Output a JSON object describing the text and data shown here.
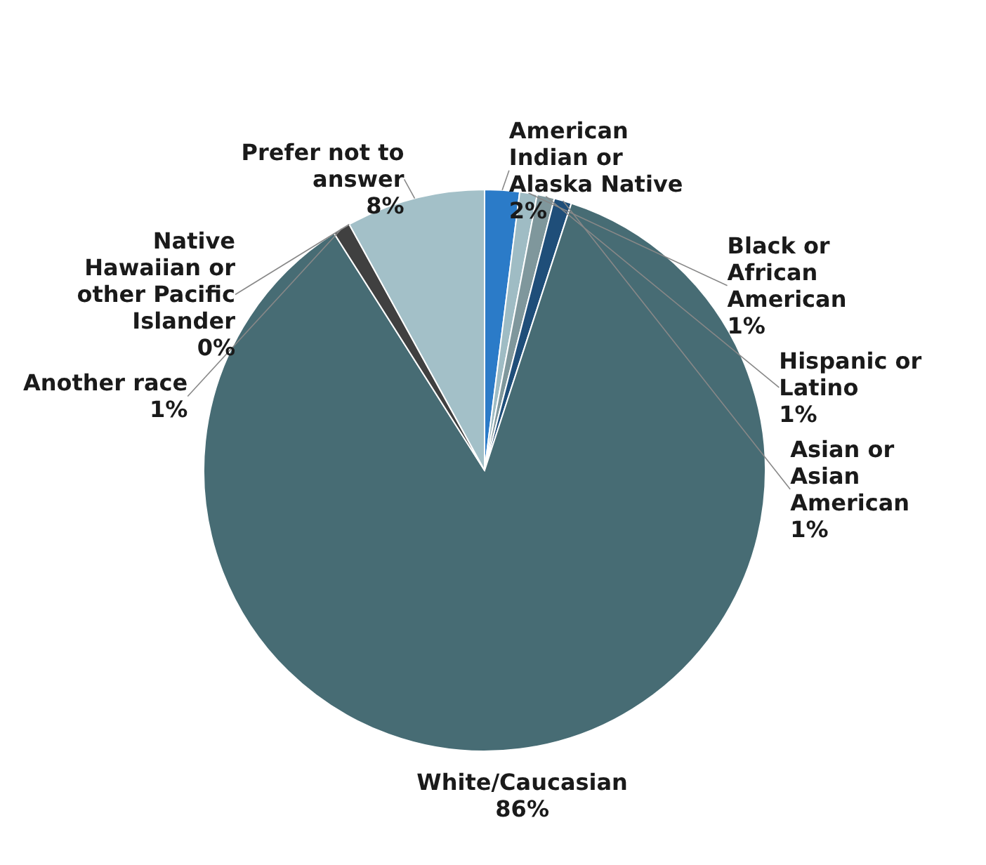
{
  "chart_data": {
    "type": "pie",
    "categories": [
      "American Indian or Alaska Native",
      "Black or African American",
      "Hispanic or Latino",
      "Asian or Asian American",
      "White/Caucasian",
      "Another race",
      "Native Hawaiian or other Pacific Islander",
      "Prefer not to answer"
    ],
    "values": [
      2,
      1,
      1,
      1,
      86,
      1,
      0,
      8
    ],
    "value_labels": [
      "2%",
      "1%",
      "1%",
      "1%",
      "86%",
      "1%",
      "0%",
      "8%"
    ],
    "colors": [
      "#2b7bc8",
      "#9fbcc4",
      "#7f979c",
      "#1f4e79",
      "#476c74",
      "#404040",
      "#3a93dd",
      "#a3c0c8"
    ]
  }
}
